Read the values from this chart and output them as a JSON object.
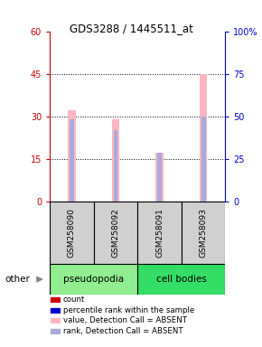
{
  "title": "GDS3288 / 1445511_at",
  "samples": [
    "GSM258090",
    "GSM258092",
    "GSM258091",
    "GSM258093"
  ],
  "bar_absent_value": [
    32,
    29,
    17,
    45
  ],
  "bar_absent_rank": [
    29,
    25,
    17,
    30
  ],
  "ylim_left": [
    0,
    60
  ],
  "ylim_right": [
    0,
    100
  ],
  "yticks_left": [
    0,
    15,
    30,
    45,
    60
  ],
  "yticks_right": [
    0,
    25,
    50,
    75,
    100
  ],
  "ytick_labels_left": [
    "0",
    "15",
    "30",
    "45",
    "60"
  ],
  "ytick_labels_right": [
    "0",
    "25",
    "50",
    "75",
    "100%"
  ],
  "grid_lines": [
    15,
    30,
    45
  ],
  "left_axis_color": "#CC0000",
  "right_axis_color": "#0000CC",
  "absent_value_color": "#FFB6C1",
  "absent_rank_color": "#AAAADD",
  "bg_color": "#FFFFFF",
  "sample_bg": "#D0D0D0",
  "pseudo_color": "#90EE90",
  "cellbody_color": "#33DD66",
  "legend_items": [
    {
      "label": "count",
      "color": "#CC0000"
    },
    {
      "label": "percentile rank within the sample",
      "color": "#0000CC"
    },
    {
      "label": "value, Detection Call = ABSENT",
      "color": "#FFB6C1"
    },
    {
      "label": "rank, Detection Call = ABSENT",
      "color": "#AAAADD"
    }
  ]
}
